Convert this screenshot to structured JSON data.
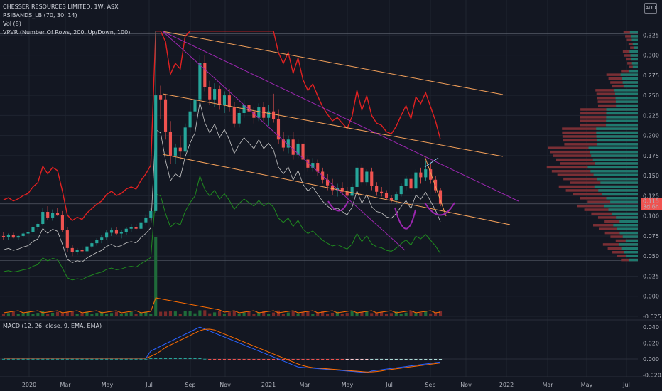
{
  "legend": {
    "title": "CHESSER RESOURCES LIMITED, 1W, ASX",
    "line2": "RSIBANDS_LB (70, 30, 14)",
    "line3": "Vol (8)",
    "line4": "VPVR (Number Of Rows, 200, Up/Down, 100)",
    "macd": "MACD (12, 26, close, 9, EMA, EMA)"
  },
  "currency": "AUD",
  "last_price_label": "0.115",
  "last_time_label": "3d 6h",
  "colors": {
    "background": "#131722",
    "up": "#26a69a",
    "down": "#ef5350",
    "grid": "#1f2430",
    "rsi_band": "#e02121",
    "rsi_line_lower": "#1f8a1f",
    "price_grey": "#c8c8c8",
    "channel": "#f5a15a",
    "wedge": "#9c27b0",
    "macd": "#2962ff",
    "signal": "#ff6d00"
  },
  "chart_data": {
    "type": "candlestick",
    "title": "CHESSER RESOURCES LIMITED, 1W, ASX",
    "x_ticks": [
      "2020",
      "Mar",
      "May",
      "Jul",
      "Sep",
      "Nov",
      "2021",
      "Mar",
      "May",
      "Jul",
      "Sep",
      "Nov",
      "2022",
      "Mar",
      "May",
      "Jul"
    ],
    "y_ticks": [
      "0.325",
      "0.300",
      "0.275",
      "0.250",
      "0.225",
      "0.200",
      "0.175",
      "0.150",
      "0.125",
      "0.100",
      "0.075",
      "0.050",
      "0.025",
      "0.000",
      "-0.025"
    ],
    "macd_ticks": [
      "0.040",
      "0.020",
      "0.000",
      "-0.020"
    ],
    "ylim": [
      -0.025,
      0.335
    ],
    "last_price": 0.115,
    "candles": [
      {
        "o": 0.075,
        "h": 0.08,
        "l": 0.07,
        "c": 0.074
      },
      {
        "o": 0.074,
        "h": 0.078,
        "l": 0.07,
        "c": 0.076
      },
      {
        "o": 0.076,
        "h": 0.079,
        "l": 0.072,
        "c": 0.073
      },
      {
        "o": 0.073,
        "h": 0.076,
        "l": 0.07,
        "c": 0.075
      },
      {
        "o": 0.075,
        "h": 0.08,
        "l": 0.073,
        "c": 0.078
      },
      {
        "o": 0.078,
        "h": 0.083,
        "l": 0.075,
        "c": 0.08
      },
      {
        "o": 0.08,
        "h": 0.088,
        "l": 0.078,
        "c": 0.086
      },
      {
        "o": 0.086,
        "h": 0.092,
        "l": 0.083,
        "c": 0.09
      },
      {
        "o": 0.09,
        "h": 0.11,
        "l": 0.088,
        "c": 0.105
      },
      {
        "o": 0.105,
        "h": 0.112,
        "l": 0.095,
        "c": 0.098
      },
      {
        "o": 0.098,
        "h": 0.108,
        "l": 0.094,
        "c": 0.104
      },
      {
        "o": 0.104,
        "h": 0.11,
        "l": 0.1,
        "c": 0.101
      },
      {
        "o": 0.101,
        "h": 0.106,
        "l": 0.08,
        "c": 0.082
      },
      {
        "o": 0.082,
        "h": 0.086,
        "l": 0.055,
        "c": 0.06
      },
      {
        "o": 0.06,
        "h": 0.064,
        "l": 0.05,
        "c": 0.055
      },
      {
        "o": 0.055,
        "h": 0.06,
        "l": 0.052,
        "c": 0.058
      },
      {
        "o": 0.058,
        "h": 0.062,
        "l": 0.054,
        "c": 0.056
      },
      {
        "o": 0.056,
        "h": 0.064,
        "l": 0.054,
        "c": 0.062
      },
      {
        "o": 0.062,
        "h": 0.068,
        "l": 0.06,
        "c": 0.066
      },
      {
        "o": 0.066,
        "h": 0.072,
        "l": 0.063,
        "c": 0.07
      },
      {
        "o": 0.07,
        "h": 0.076,
        "l": 0.066,
        "c": 0.073
      },
      {
        "o": 0.073,
        "h": 0.082,
        "l": 0.07,
        "c": 0.079
      },
      {
        "o": 0.079,
        "h": 0.085,
        "l": 0.075,
        "c": 0.082
      },
      {
        "o": 0.082,
        "h": 0.086,
        "l": 0.076,
        "c": 0.078
      },
      {
        "o": 0.078,
        "h": 0.082,
        "l": 0.072,
        "c": 0.08
      },
      {
        "o": 0.08,
        "h": 0.086,
        "l": 0.076,
        "c": 0.084
      },
      {
        "o": 0.084,
        "h": 0.09,
        "l": 0.08,
        "c": 0.086
      },
      {
        "o": 0.086,
        "h": 0.09,
        "l": 0.082,
        "c": 0.084
      },
      {
        "o": 0.084,
        "h": 0.096,
        "l": 0.082,
        "c": 0.092
      },
      {
        "o": 0.092,
        "h": 0.102,
        "l": 0.088,
        "c": 0.098
      },
      {
        "o": 0.098,
        "h": 0.11,
        "l": 0.094,
        "c": 0.106
      },
      {
        "o": 0.106,
        "h": 0.33,
        "l": 0.104,
        "c": 0.25
      },
      {
        "o": 0.25,
        "h": 0.262,
        "l": 0.22,
        "c": 0.245
      },
      {
        "o": 0.245,
        "h": 0.252,
        "l": 0.195,
        "c": 0.205
      },
      {
        "o": 0.205,
        "h": 0.218,
        "l": 0.165,
        "c": 0.175
      },
      {
        "o": 0.175,
        "h": 0.19,
        "l": 0.165,
        "c": 0.185
      },
      {
        "o": 0.185,
        "h": 0.2,
        "l": 0.17,
        "c": 0.18
      },
      {
        "o": 0.18,
        "h": 0.215,
        "l": 0.178,
        "c": 0.21
      },
      {
        "o": 0.21,
        "h": 0.24,
        "l": 0.205,
        "c": 0.23
      },
      {
        "o": 0.23,
        "h": 0.25,
        "l": 0.22,
        "c": 0.245
      },
      {
        "o": 0.245,
        "h": 0.3,
        "l": 0.24,
        "c": 0.29
      },
      {
        "o": 0.29,
        "h": 0.3,
        "l": 0.255,
        "c": 0.26
      },
      {
        "o": 0.26,
        "h": 0.268,
        "l": 0.238,
        "c": 0.245
      },
      {
        "o": 0.245,
        "h": 0.265,
        "l": 0.235,
        "c": 0.258
      },
      {
        "o": 0.258,
        "h": 0.262,
        "l": 0.232,
        "c": 0.238
      },
      {
        "o": 0.238,
        "h": 0.255,
        "l": 0.228,
        "c": 0.25
      },
      {
        "o": 0.25,
        "h": 0.258,
        "l": 0.23,
        "c": 0.235
      },
      {
        "o": 0.235,
        "h": 0.242,
        "l": 0.21,
        "c": 0.215
      },
      {
        "o": 0.215,
        "h": 0.232,
        "l": 0.21,
        "c": 0.228
      },
      {
        "o": 0.228,
        "h": 0.245,
        "l": 0.222,
        "c": 0.238
      },
      {
        "o": 0.238,
        "h": 0.248,
        "l": 0.225,
        "c": 0.23
      },
      {
        "o": 0.23,
        "h": 0.236,
        "l": 0.215,
        "c": 0.222
      },
      {
        "o": 0.222,
        "h": 0.24,
        "l": 0.218,
        "c": 0.235
      },
      {
        "o": 0.235,
        "h": 0.242,
        "l": 0.218,
        "c": 0.222
      },
      {
        "o": 0.222,
        "h": 0.238,
        "l": 0.212,
        "c": 0.23
      },
      {
        "o": 0.23,
        "h": 0.252,
        "l": 0.216,
        "c": 0.22
      },
      {
        "o": 0.22,
        "h": 0.232,
        "l": 0.19,
        "c": 0.195
      },
      {
        "o": 0.195,
        "h": 0.205,
        "l": 0.18,
        "c": 0.185
      },
      {
        "o": 0.185,
        "h": 0.2,
        "l": 0.178,
        "c": 0.195
      },
      {
        "o": 0.195,
        "h": 0.205,
        "l": 0.17,
        "c": 0.176
      },
      {
        "o": 0.176,
        "h": 0.195,
        "l": 0.172,
        "c": 0.19
      },
      {
        "o": 0.19,
        "h": 0.195,
        "l": 0.165,
        "c": 0.17
      },
      {
        "o": 0.17,
        "h": 0.175,
        "l": 0.155,
        "c": 0.16
      },
      {
        "o": 0.16,
        "h": 0.172,
        "l": 0.155,
        "c": 0.166
      },
      {
        "o": 0.166,
        "h": 0.17,
        "l": 0.15,
        "c": 0.155
      },
      {
        "o": 0.155,
        "h": 0.16,
        "l": 0.14,
        "c": 0.145
      },
      {
        "o": 0.145,
        "h": 0.152,
        "l": 0.132,
        "c": 0.138
      },
      {
        "o": 0.138,
        "h": 0.146,
        "l": 0.126,
        "c": 0.132
      },
      {
        "o": 0.132,
        "h": 0.14,
        "l": 0.124,
        "c": 0.135
      },
      {
        "o": 0.135,
        "h": 0.142,
        "l": 0.126,
        "c": 0.13
      },
      {
        "o": 0.13,
        "h": 0.136,
        "l": 0.12,
        "c": 0.125
      },
      {
        "o": 0.125,
        "h": 0.14,
        "l": 0.122,
        "c": 0.136
      },
      {
        "o": 0.136,
        "h": 0.168,
        "l": 0.13,
        "c": 0.16
      },
      {
        "o": 0.16,
        "h": 0.165,
        "l": 0.138,
        "c": 0.142
      },
      {
        "o": 0.142,
        "h": 0.158,
        "l": 0.138,
        "c": 0.155
      },
      {
        "o": 0.155,
        "h": 0.16,
        "l": 0.132,
        "c": 0.137
      },
      {
        "o": 0.137,
        "h": 0.142,
        "l": 0.125,
        "c": 0.13
      },
      {
        "o": 0.13,
        "h": 0.136,
        "l": 0.124,
        "c": 0.128
      },
      {
        "o": 0.128,
        "h": 0.132,
        "l": 0.12,
        "c": 0.122
      },
      {
        "o": 0.122,
        "h": 0.126,
        "l": 0.117,
        "c": 0.12
      },
      {
        "o": 0.12,
        "h": 0.13,
        "l": 0.115,
        "c": 0.127
      },
      {
        "o": 0.127,
        "h": 0.14,
        "l": 0.124,
        "c": 0.137
      },
      {
        "o": 0.137,
        "h": 0.15,
        "l": 0.132,
        "c": 0.146
      },
      {
        "o": 0.146,
        "h": 0.152,
        "l": 0.13,
        "c": 0.134
      },
      {
        "o": 0.134,
        "h": 0.158,
        "l": 0.13,
        "c": 0.154
      },
      {
        "o": 0.154,
        "h": 0.16,
        "l": 0.14,
        "c": 0.148
      },
      {
        "o": 0.148,
        "h": 0.168,
        "l": 0.144,
        "c": 0.158
      },
      {
        "o": 0.158,
        "h": 0.165,
        "l": 0.14,
        "c": 0.145
      },
      {
        "o": 0.145,
        "h": 0.15,
        "l": 0.128,
        "c": 0.132
      },
      {
        "o": 0.132,
        "h": 0.135,
        "l": 0.112,
        "c": 0.115
      }
    ]
  }
}
